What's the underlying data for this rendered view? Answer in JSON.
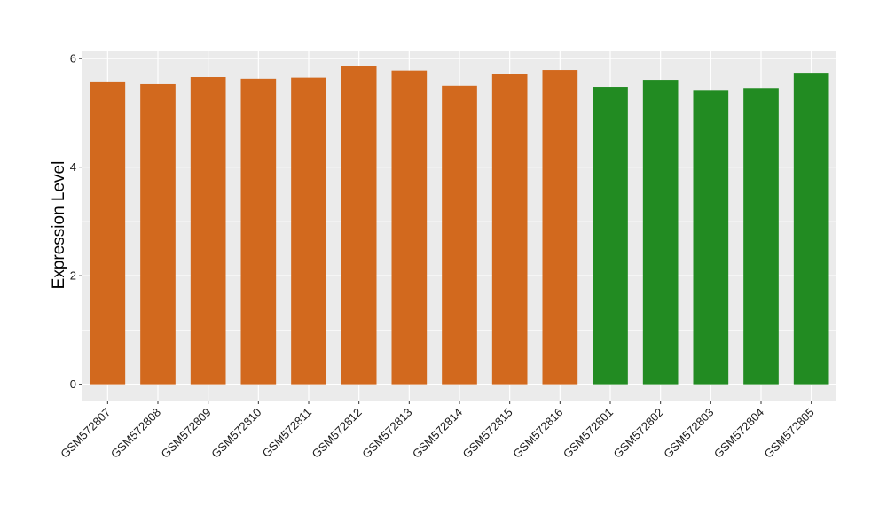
{
  "chart_data": {
    "type": "bar",
    "title": "",
    "xlabel": "",
    "ylabel": "Expression Level",
    "ylim": [
      -0.3,
      6.15
    ],
    "yticks": [
      0,
      2,
      4,
      6
    ],
    "grid": true,
    "legend": "none",
    "categories": [
      "GSM572807",
      "GSM572808",
      "GSM572809",
      "GSM572810",
      "GSM572811",
      "GSM572812",
      "GSM572813",
      "GSM572814",
      "GSM572815",
      "GSM572816",
      "GSM572801",
      "GSM572802",
      "GSM572803",
      "GSM572804",
      "GSM572805"
    ],
    "values": [
      5.58,
      5.53,
      5.66,
      5.63,
      5.65,
      5.86,
      5.78,
      5.5,
      5.71,
      5.79,
      5.48,
      5.61,
      5.41,
      5.46,
      5.74
    ],
    "bar_colors": [
      "#D2691E",
      "#D2691E",
      "#D2691E",
      "#D2691E",
      "#D2691E",
      "#D2691E",
      "#D2691E",
      "#D2691E",
      "#D2691E",
      "#D2691E",
      "#228B22",
      "#228B22",
      "#228B22",
      "#228B22",
      "#228B22"
    ],
    "panel_background": "#EBEBEB",
    "grid_color": "#FFFFFF"
  }
}
